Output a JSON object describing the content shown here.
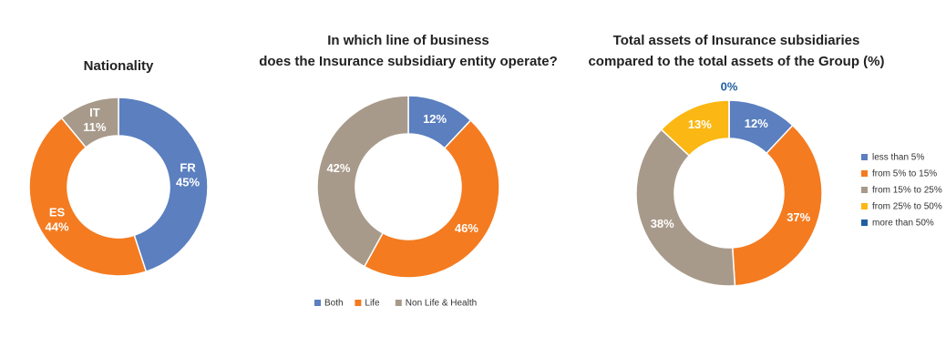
{
  "chart_data": [
    {
      "type": "donut",
      "title": [
        "Nationality"
      ],
      "categories": [
        "FR",
        "ES",
        "IT"
      ],
      "values": [
        45,
        44,
        11
      ],
      "value_labels": [
        "45%",
        "44%",
        "11%"
      ],
      "colors": [
        "#5b7fbf",
        "#f47b20",
        "#a89a8a"
      ],
      "label_shows_category": true,
      "legend": "none"
    },
    {
      "type": "donut",
      "title": [
        "In which line of business",
        "does the Insurance subsidiary entity operate?"
      ],
      "categories": [
        "Both",
        "Life",
        "Non Life & Health"
      ],
      "values": [
        12,
        46,
        42
      ],
      "value_labels": [
        "12%",
        "46%",
        "42%"
      ],
      "colors": [
        "#5b7fbf",
        "#f47b20",
        "#a89a8a"
      ],
      "label_shows_category": false,
      "legend": "bottom"
    },
    {
      "type": "donut",
      "title": [
        "Total assets of Insurance subsidiaries",
        "compared to the total assets of the Group (%)"
      ],
      "categories": [
        "less than 5%",
        "from 5% to 15%",
        "from 15% to 25%",
        "from 25% to 50%",
        "more than 50%"
      ],
      "values": [
        12,
        37,
        38,
        13,
        0
      ],
      "value_labels": [
        "12%",
        "37%",
        "38%",
        "13%",
        "0%"
      ],
      "colors": [
        "#5b7fbf",
        "#f47b20",
        "#a89a8a",
        "#fbb714",
        "#1f5fa0"
      ],
      "label_shows_category": false,
      "legend": "right"
    }
  ]
}
